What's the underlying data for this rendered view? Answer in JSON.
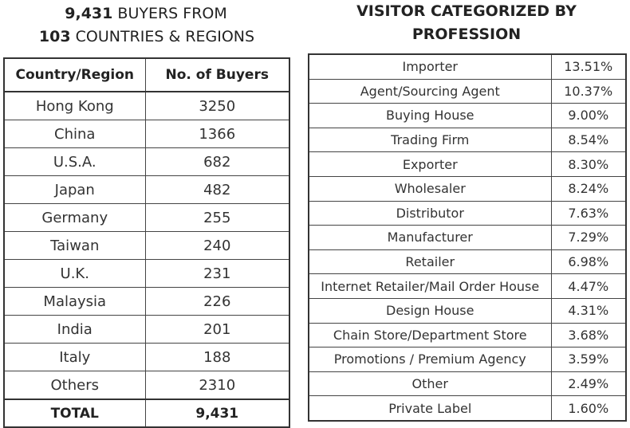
{
  "buyers_section": {
    "title_line1_number": "9,431",
    "title_line1_text": "BUYERS FROM",
    "title_line2_number": "103",
    "title_line2_text": "COUNTRIES & REGIONS",
    "columns": [
      "Country/Region",
      "No. of Buyers"
    ],
    "rows": [
      {
        "country": "Hong Kong",
        "buyers": "3250"
      },
      {
        "country": "China",
        "buyers": "1366"
      },
      {
        "country": "U.S.A.",
        "buyers": "682"
      },
      {
        "country": "Japan",
        "buyers": "482"
      },
      {
        "country": "Germany",
        "buyers": "255"
      },
      {
        "country": "Taiwan",
        "buyers": "240"
      },
      {
        "country": "U.K.",
        "buyers": "231"
      },
      {
        "country": "Malaysia",
        "buyers": "226"
      },
      {
        "country": "India",
        "buyers": "201"
      },
      {
        "country": "Italy",
        "buyers": "188"
      },
      {
        "country": "Others",
        "buyers": "2310"
      }
    ],
    "total_label": "TOTAL",
    "total_value": "9,431"
  },
  "profession_section": {
    "title_line1": "VISITOR CATEGORIZED BY",
    "title_line2": "PROFESSION",
    "rows": [
      {
        "profession": "Importer",
        "percent": "13.51%"
      },
      {
        "profession": "Agent/Sourcing Agent",
        "percent": "10.37%"
      },
      {
        "profession": "Buying House",
        "percent": "9.00%"
      },
      {
        "profession": "Trading Firm",
        "percent": "8.54%"
      },
      {
        "profession": "Exporter",
        "percent": "8.30%"
      },
      {
        "profession": "Wholesaler",
        "percent": "8.24%"
      },
      {
        "profession": "Distributor",
        "percent": "7.63%"
      },
      {
        "profession": "Manufacturer",
        "percent": "7.29%"
      },
      {
        "profession": "Retailer",
        "percent": "6.98%"
      },
      {
        "profession": "Internet Retailer/Mail Order House",
        "percent": "4.47%"
      },
      {
        "profession": "Design House",
        "percent": "4.31%"
      },
      {
        "profession": "Chain Store/Department Store",
        "percent": "3.68%"
      },
      {
        "profession": "Promotions / Premium Agency",
        "percent": "3.59%"
      },
      {
        "profession": "Other",
        "percent": "2.49%"
      },
      {
        "profession": "Private Label",
        "percent": "1.60%"
      }
    ]
  }
}
